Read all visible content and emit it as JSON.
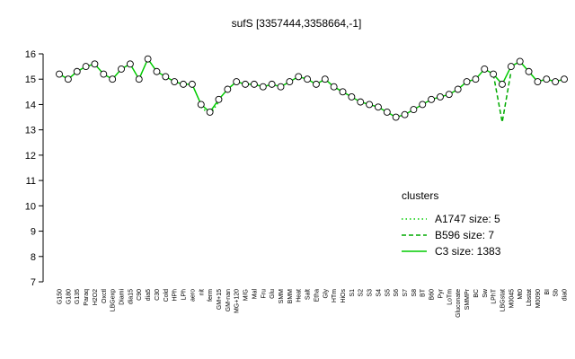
{
  "chart_data": {
    "type": "line",
    "title": "sufS [3357444,3358664,-1]",
    "categories": [
      "G150",
      "G180",
      "G135",
      "Paraq",
      "H2O2",
      "Oxctl",
      "LBGexp",
      "Diami",
      "dia15",
      "C90",
      "dia5",
      "C30",
      "Cold",
      "HPh",
      "LPh",
      "aero",
      "nit",
      "ferm",
      "GM+15",
      "GM-nan",
      "MG+120",
      "M/G",
      "Mal",
      "Fru",
      "Glu",
      "SMM",
      "BMM",
      "Heat",
      "Salt",
      "Etha",
      "Gly",
      "HTm",
      "HiOs",
      "S1",
      "S2",
      "S3",
      "S4",
      "S5",
      "S6",
      "S7",
      "S8",
      "BT",
      "B60",
      "Pyr",
      "LoTm",
      "Gluconate",
      "SMMPr",
      "BC",
      "Sw",
      "LPhT",
      "LBGstat",
      "M0045",
      "Mt0",
      "Lbstat",
      "M0090",
      "BI",
      "Sb",
      "dia0"
    ],
    "series": [
      {
        "name": "A1747 size: 5",
        "color": "#00cc00",
        "dash": "dotted",
        "values": [
          null,
          null,
          null,
          null,
          null,
          null,
          null,
          null,
          null,
          null,
          null,
          null,
          null,
          null,
          null,
          null,
          13.9,
          13.6,
          14.1,
          null,
          null,
          null,
          null,
          null,
          null,
          null,
          null,
          null,
          null,
          null,
          null,
          null,
          null,
          null,
          null,
          null,
          null,
          null,
          null,
          null,
          null,
          null,
          null,
          null,
          null,
          null,
          null,
          null,
          null,
          null,
          null,
          null,
          null,
          null,
          null,
          null,
          null,
          null
        ]
      },
      {
        "name": "B596 size: 7",
        "color": "#00aa00",
        "dash": "dashed",
        "values": [
          null,
          null,
          null,
          null,
          null,
          null,
          null,
          null,
          null,
          null,
          null,
          null,
          null,
          null,
          null,
          null,
          null,
          null,
          null,
          null,
          null,
          null,
          null,
          null,
          null,
          null,
          null,
          null,
          null,
          null,
          null,
          null,
          null,
          null,
          null,
          null,
          null,
          null,
          null,
          null,
          null,
          null,
          null,
          null,
          null,
          null,
          null,
          null,
          null,
          15.2,
          13.3,
          15.3,
          null,
          null,
          null,
          null,
          null,
          null
        ]
      },
      {
        "name": "C3 size: 1383",
        "color": "#00cc00",
        "dash": "solid",
        "markers": true,
        "values": [
          15.2,
          15.0,
          15.3,
          15.5,
          15.6,
          15.2,
          15.0,
          15.4,
          15.6,
          15.0,
          15.8,
          15.3,
          15.1,
          14.9,
          14.8,
          14.8,
          14.0,
          13.7,
          14.2,
          14.6,
          14.9,
          14.8,
          14.8,
          14.7,
          14.8,
          14.7,
          14.9,
          15.1,
          15.0,
          14.8,
          15.0,
          14.7,
          14.5,
          14.3,
          14.1,
          14.0,
          13.9,
          13.7,
          13.5,
          13.6,
          13.8,
          14.0,
          14.2,
          14.3,
          14.4,
          14.6,
          14.9,
          15.0,
          15.4,
          15.2,
          14.8,
          15.5,
          15.7,
          15.3,
          14.9,
          15.0,
          14.9,
          15.0
        ]
      }
    ],
    "legend_title": "clusters",
    "ylim": [
      7,
      16
    ],
    "yticks": [
      7,
      8,
      9,
      10,
      11,
      12,
      13,
      14,
      15,
      16
    ]
  }
}
